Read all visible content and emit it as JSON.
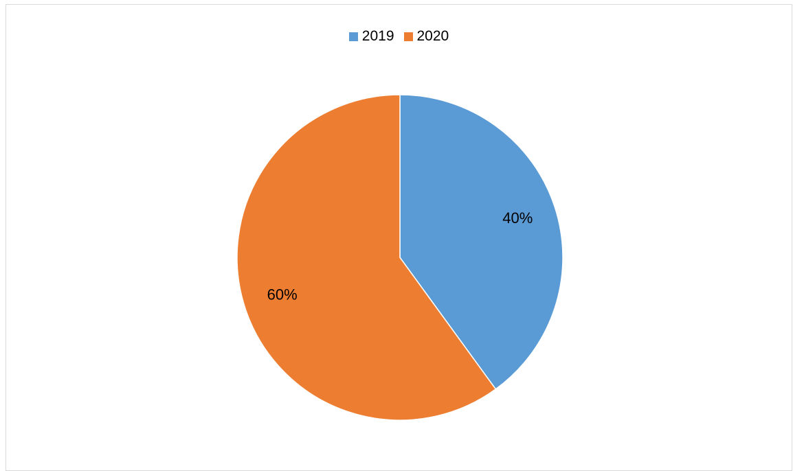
{
  "chart_data": {
    "type": "pie",
    "categories": [
      "2019",
      "2020"
    ],
    "values": [
      40,
      60
    ],
    "data_labels": [
      "40%",
      "60%"
    ],
    "colors": [
      "#5B9BD5",
      "#ED7D31"
    ],
    "legend": {
      "placement": "top",
      "entries": [
        "2019",
        "2020"
      ]
    },
    "start_angle_deg": 0,
    "direction": "clockwise"
  }
}
